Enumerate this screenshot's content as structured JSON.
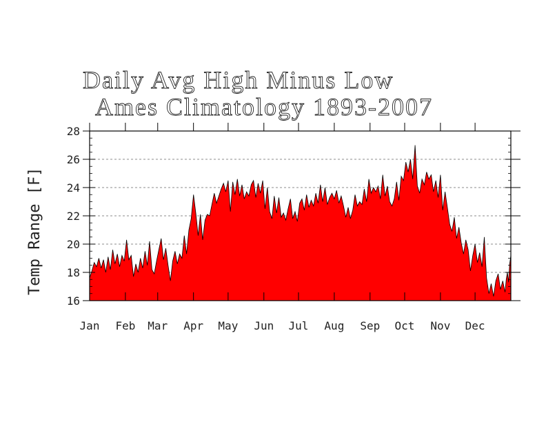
{
  "chart_data": {
    "type": "area",
    "title": "Daily Avg High Minus Low",
    "subtitle": "Ames Climatology 1893-2007",
    "xlabel": "",
    "ylabel": "Temp Range [F]",
    "ylim": [
      16,
      28
    ],
    "yticks": [
      16,
      18,
      20,
      22,
      24,
      26,
      28
    ],
    "xlim": [
      1,
      366
    ],
    "month_labels": [
      "Jan",
      "Feb",
      "Mar",
      "Apr",
      "May",
      "Jun",
      "Jul",
      "Aug",
      "Sep",
      "Oct",
      "Nov",
      "Dec"
    ],
    "grid": "y-dashed",
    "fill_color": "#ff0000",
    "series": [
      {
        "x_unit": "day of year",
        "points": [
          [
            1,
            17.6
          ],
          [
            3,
            18.1
          ],
          [
            5,
            18.7
          ],
          [
            7,
            18.4
          ],
          [
            9,
            19.0
          ],
          [
            11,
            18.3
          ],
          [
            13,
            18.9
          ],
          [
            15,
            18.0
          ],
          [
            17,
            19.1
          ],
          [
            19,
            18.2
          ],
          [
            21,
            19.6
          ],
          [
            23,
            18.6
          ],
          [
            25,
            19.3
          ],
          [
            27,
            18.4
          ],
          [
            29,
            19.2
          ],
          [
            31,
            18.8
          ],
          [
            33,
            20.3
          ],
          [
            35,
            18.9
          ],
          [
            37,
            19.2
          ],
          [
            39,
            17.7
          ],
          [
            41,
            18.6
          ],
          [
            43,
            18.0
          ],
          [
            45,
            19.0
          ],
          [
            47,
            18.3
          ],
          [
            49,
            19.5
          ],
          [
            51,
            18.5
          ],
          [
            53,
            20.2
          ],
          [
            55,
            18.2
          ],
          [
            57,
            17.9
          ],
          [
            59,
            18.8
          ],
          [
            61,
            19.6
          ],
          [
            63,
            20.4
          ],
          [
            65,
            18.9
          ],
          [
            67,
            19.7
          ],
          [
            69,
            18.5
          ],
          [
            71,
            17.4
          ],
          [
            73,
            18.8
          ],
          [
            75,
            19.5
          ],
          [
            77,
            18.6
          ],
          [
            79,
            19.3
          ],
          [
            81,
            19.0
          ],
          [
            83,
            20.6
          ],
          [
            85,
            19.3
          ],
          [
            87,
            21.0
          ],
          [
            89,
            21.8
          ],
          [
            91,
            23.5
          ],
          [
            93,
            22.2
          ],
          [
            95,
            20.6
          ],
          [
            97,
            22.1
          ],
          [
            99,
            20.3
          ],
          [
            101,
            21.7
          ],
          [
            103,
            22.1
          ],
          [
            105,
            22.0
          ],
          [
            107,
            22.8
          ],
          [
            109,
            23.6
          ],
          [
            111,
            22.9
          ],
          [
            113,
            23.4
          ],
          [
            115,
            23.9
          ],
          [
            117,
            24.3
          ],
          [
            119,
            23.7
          ],
          [
            121,
            24.5
          ],
          [
            123,
            22.3
          ],
          [
            125,
            24.4
          ],
          [
            127,
            23.5
          ],
          [
            129,
            24.6
          ],
          [
            131,
            23.4
          ],
          [
            133,
            24.2
          ],
          [
            135,
            23.2
          ],
          [
            137,
            23.7
          ],
          [
            139,
            23.4
          ],
          [
            141,
            24.2
          ],
          [
            143,
            24.5
          ],
          [
            145,
            23.3
          ],
          [
            147,
            24.3
          ],
          [
            149,
            23.6
          ],
          [
            151,
            24.5
          ],
          [
            153,
            22.5
          ],
          [
            155,
            24.0
          ],
          [
            157,
            22.3
          ],
          [
            159,
            21.8
          ],
          [
            161,
            23.4
          ],
          [
            163,
            22.2
          ],
          [
            165,
            23.3
          ],
          [
            167,
            21.9
          ],
          [
            169,
            22.2
          ],
          [
            171,
            21.7
          ],
          [
            173,
            22.5
          ],
          [
            175,
            23.2
          ],
          [
            177,
            21.8
          ],
          [
            179,
            22.3
          ],
          [
            181,
            21.6
          ],
          [
            183,
            22.9
          ],
          [
            185,
            23.2
          ],
          [
            187,
            22.4
          ],
          [
            189,
            23.5
          ],
          [
            191,
            22.6
          ],
          [
            193,
            23.1
          ],
          [
            195,
            22.7
          ],
          [
            197,
            23.6
          ],
          [
            199,
            22.9
          ],
          [
            201,
            24.2
          ],
          [
            203,
            23.0
          ],
          [
            205,
            24.0
          ],
          [
            207,
            22.8
          ],
          [
            209,
            23.3
          ],
          [
            211,
            23.6
          ],
          [
            213,
            23.2
          ],
          [
            215,
            23.8
          ],
          [
            217,
            22.9
          ],
          [
            219,
            23.4
          ],
          [
            221,
            22.7
          ],
          [
            223,
            21.9
          ],
          [
            225,
            22.6
          ],
          [
            227,
            21.8
          ],
          [
            229,
            22.4
          ],
          [
            231,
            23.5
          ],
          [
            233,
            22.7
          ],
          [
            235,
            23.0
          ],
          [
            237,
            22.8
          ],
          [
            239,
            23.9
          ],
          [
            241,
            23.0
          ],
          [
            243,
            24.6
          ],
          [
            245,
            23.6
          ],
          [
            247,
            24.0
          ],
          [
            249,
            23.7
          ],
          [
            251,
            24.1
          ],
          [
            253,
            23.2
          ],
          [
            255,
            24.9
          ],
          [
            257,
            23.4
          ],
          [
            259,
            24.1
          ],
          [
            261,
            23.0
          ],
          [
            263,
            22.7
          ],
          [
            265,
            23.2
          ],
          [
            267,
            24.4
          ],
          [
            269,
            23.1
          ],
          [
            271,
            24.8
          ],
          [
            273,
            24.5
          ],
          [
            275,
            25.8
          ],
          [
            277,
            25.1
          ],
          [
            279,
            26.0
          ],
          [
            281,
            24.6
          ],
          [
            283,
            27.0
          ],
          [
            285,
            24.1
          ],
          [
            287,
            23.6
          ],
          [
            289,
            24.6
          ],
          [
            291,
            24.2
          ],
          [
            293,
            25.1
          ],
          [
            295,
            24.6
          ],
          [
            297,
            24.9
          ],
          [
            299,
            23.7
          ],
          [
            301,
            24.5
          ],
          [
            303,
            23.3
          ],
          [
            305,
            24.9
          ],
          [
            307,
            22.4
          ],
          [
            309,
            23.7
          ],
          [
            311,
            22.6
          ],
          [
            313,
            21.4
          ],
          [
            315,
            20.9
          ],
          [
            317,
            21.9
          ],
          [
            319,
            20.4
          ],
          [
            321,
            21.2
          ],
          [
            323,
            20.1
          ],
          [
            325,
            19.3
          ],
          [
            327,
            20.3
          ],
          [
            329,
            19.6
          ],
          [
            331,
            18.1
          ],
          [
            333,
            19.2
          ],
          [
            335,
            20.0
          ],
          [
            337,
            18.7
          ],
          [
            339,
            19.4
          ],
          [
            341,
            18.4
          ],
          [
            343,
            20.5
          ],
          [
            345,
            17.6
          ],
          [
            347,
            16.5
          ],
          [
            349,
            17.2
          ],
          [
            351,
            16.3
          ],
          [
            353,
            17.4
          ],
          [
            355,
            17.9
          ],
          [
            357,
            16.8
          ],
          [
            359,
            17.4
          ],
          [
            361,
            16.6
          ],
          [
            362,
            17.5
          ],
          [
            363,
            18.0
          ],
          [
            364,
            17.3
          ],
          [
            365,
            18.6
          ],
          [
            366,
            19.2
          ]
        ]
      }
    ]
  }
}
